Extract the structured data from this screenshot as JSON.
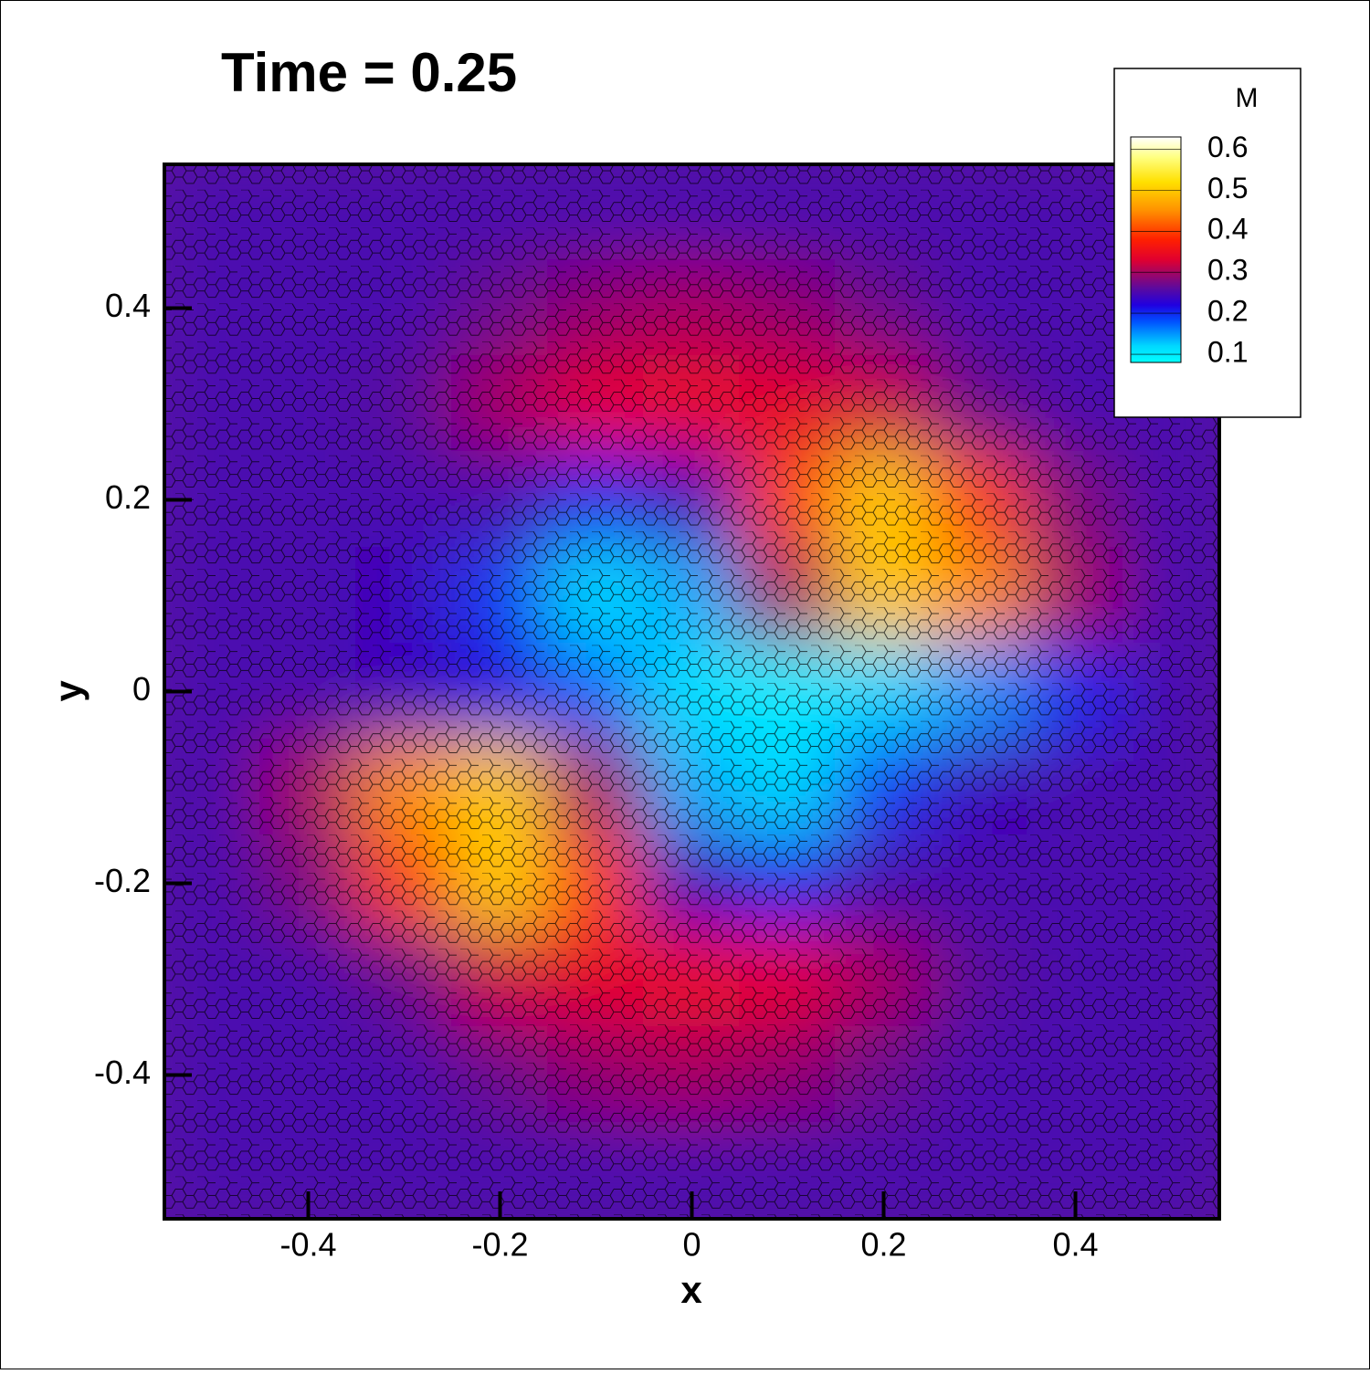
{
  "chart_data": {
    "type": "contour",
    "title": "Time = 0.25",
    "xlabel": "x",
    "ylabel": "y",
    "xlim": [
      -0.55,
      0.55
    ],
    "ylim": [
      -0.55,
      0.55
    ],
    "xticks": [
      -0.4,
      -0.2,
      0,
      0.2,
      0.4
    ],
    "yticks": [
      -0.4,
      -0.2,
      0,
      0.2,
      0.4
    ],
    "x": [
      -0.5,
      -0.4,
      -0.3,
      -0.2,
      -0.1,
      0,
      0.1,
      0.2,
      0.3,
      0.4,
      0.5
    ],
    "y": [
      0.5,
      0.4,
      0.3,
      0.2,
      0.1,
      0,
      -0.1,
      -0.2,
      -0.3,
      -0.4,
      -0.5
    ],
    "z": [
      [
        0.25,
        0.25,
        0.25,
        0.25,
        0.25,
        0.25,
        0.25,
        0.25,
        0.25,
        0.25,
        0.25
      ],
      [
        0.25,
        0.25,
        0.25,
        0.27,
        0.29,
        0.3,
        0.29,
        0.27,
        0.25,
        0.25,
        0.25
      ],
      [
        0.25,
        0.25,
        0.26,
        0.3,
        0.34,
        0.35,
        0.34,
        0.32,
        0.27,
        0.25,
        0.25
      ],
      [
        0.25,
        0.25,
        0.25,
        0.25,
        0.2,
        0.24,
        0.4,
        0.5,
        0.4,
        0.28,
        0.25
      ],
      [
        0.25,
        0.25,
        0.24,
        0.19,
        0.12,
        0.14,
        0.3,
        0.5,
        0.45,
        0.3,
        0.25
      ],
      [
        0.25,
        0.25,
        0.24,
        0.22,
        0.17,
        0.11,
        0.1,
        0.12,
        0.15,
        0.2,
        0.25
      ],
      [
        0.25,
        0.3,
        0.45,
        0.5,
        0.3,
        0.14,
        0.12,
        0.19,
        0.24,
        0.25,
        0.25
      ],
      [
        0.25,
        0.28,
        0.4,
        0.5,
        0.4,
        0.24,
        0.2,
        0.25,
        0.25,
        0.25,
        0.25
      ],
      [
        0.25,
        0.25,
        0.27,
        0.32,
        0.34,
        0.35,
        0.34,
        0.3,
        0.26,
        0.25,
        0.25
      ],
      [
        0.25,
        0.25,
        0.25,
        0.27,
        0.29,
        0.3,
        0.29,
        0.27,
        0.25,
        0.25,
        0.25
      ],
      [
        0.25,
        0.25,
        0.25,
        0.25,
        0.25,
        0.25,
        0.25,
        0.25,
        0.25,
        0.25,
        0.25
      ]
    ],
    "colorbar": {
      "label": "M",
      "lim": [
        0.08,
        0.63
      ],
      "ticks": [
        0.1,
        0.2,
        0.3,
        0.4,
        0.5,
        0.6
      ]
    },
    "colormap": {
      "values": [
        0.08,
        0.12,
        0.18,
        0.22,
        0.26,
        0.33,
        0.38,
        0.45,
        0.52,
        0.58,
        0.63
      ],
      "colors": [
        "#00ffff",
        "#00d8ff",
        "#0050ff",
        "#2000e0",
        "#5a0aa0",
        "#e00030",
        "#ff2000",
        "#ff9000",
        "#ffe000",
        "#ffff80",
        "#ffffff"
      ]
    }
  }
}
